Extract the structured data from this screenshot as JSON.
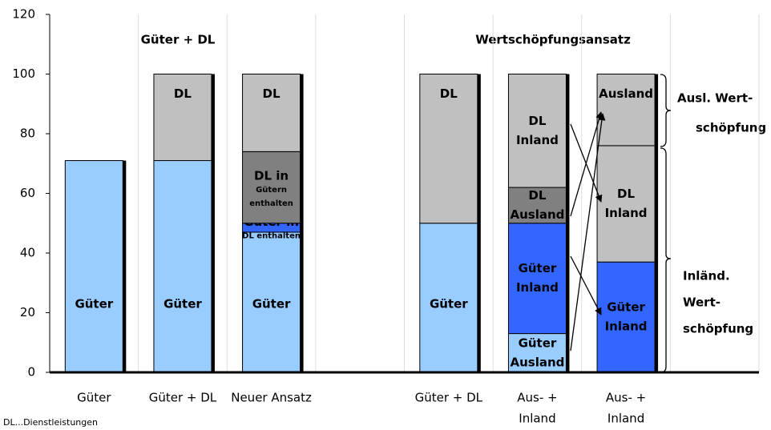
{
  "chart_data": {
    "type": "stacked_bar",
    "categories": [
      "Güter",
      "Güter + DL",
      "Neuer Ansatz",
      null,
      "Güter + DL",
      [
        "Aus- +",
        "Inland"
      ],
      [
        "Aus- +",
        "Inland"
      ],
      null
    ],
    "stacks": [
      [
        {
          "label": [
            "Güter"
          ],
          "value": 71,
          "color": "#99ccff"
        }
      ],
      [
        {
          "label": [
            "Güter"
          ],
          "value": 71,
          "color": "#99ccff"
        },
        {
          "label": [
            "DL"
          ],
          "value": 29,
          "color": "#c0c0c0"
        }
      ],
      [
        {
          "label": [
            "Güter"
          ],
          "value": 47,
          "color": "#99ccff"
        },
        {
          "label": [
            "Güter in",
            "DL enthalten"
          ],
          "value": 3,
          "color": "#3366ff"
        },
        {
          "label": [
            "DL in",
            "Gütern",
            "enthalten"
          ],
          "value": 24,
          "color": "#808080"
        },
        {
          "label": [
            "DL"
          ],
          "value": 26,
          "color": "#c0c0c0"
        }
      ],
      [],
      [
        {
          "label": [
            "Güter"
          ],
          "value": 50,
          "color": "#99ccff"
        },
        {
          "label": [
            "DL"
          ],
          "value": 50,
          "color": "#c0c0c0"
        }
      ],
      [
        {
          "label": [
            "Güter",
            "Ausland"
          ],
          "value": 13,
          "color": "#99ccff"
        },
        {
          "label": [
            "Güter",
            "Inland"
          ],
          "value": 37,
          "color": "#3366ff"
        },
        {
          "label": [
            "DL",
            "Ausland"
          ],
          "value": 12,
          "color": "#808080"
        },
        {
          "label": [
            "DL",
            "Inland"
          ],
          "value": 38,
          "color": "#c0c0c0"
        }
      ],
      [
        {
          "label": [
            "Güter",
            "Inland"
          ],
          "value": 37,
          "color": "#3366ff"
        },
        {
          "label": [
            "DL",
            "Inland"
          ],
          "value": 39,
          "color": "#c0c0c0"
        },
        {
          "label": [
            "Ausland"
          ],
          "value": 24,
          "color": "#c0c0c0"
        }
      ],
      []
    ],
    "ylim": [
      0,
      120
    ],
    "yticks": [
      0,
      20,
      40,
      60,
      80,
      100,
      120
    ],
    "grid": true,
    "annotations": {
      "goods_services": "Güter + DL",
      "value_added": "Wertschöpfungsansatz",
      "foreign": [
        "Ausl. Wert-",
        "schöpfung"
      ],
      "domestic": [
        "Inländ.",
        "Wert-",
        "schöpfung"
      ]
    },
    "footnote": "DL...Dienstleistungen"
  }
}
